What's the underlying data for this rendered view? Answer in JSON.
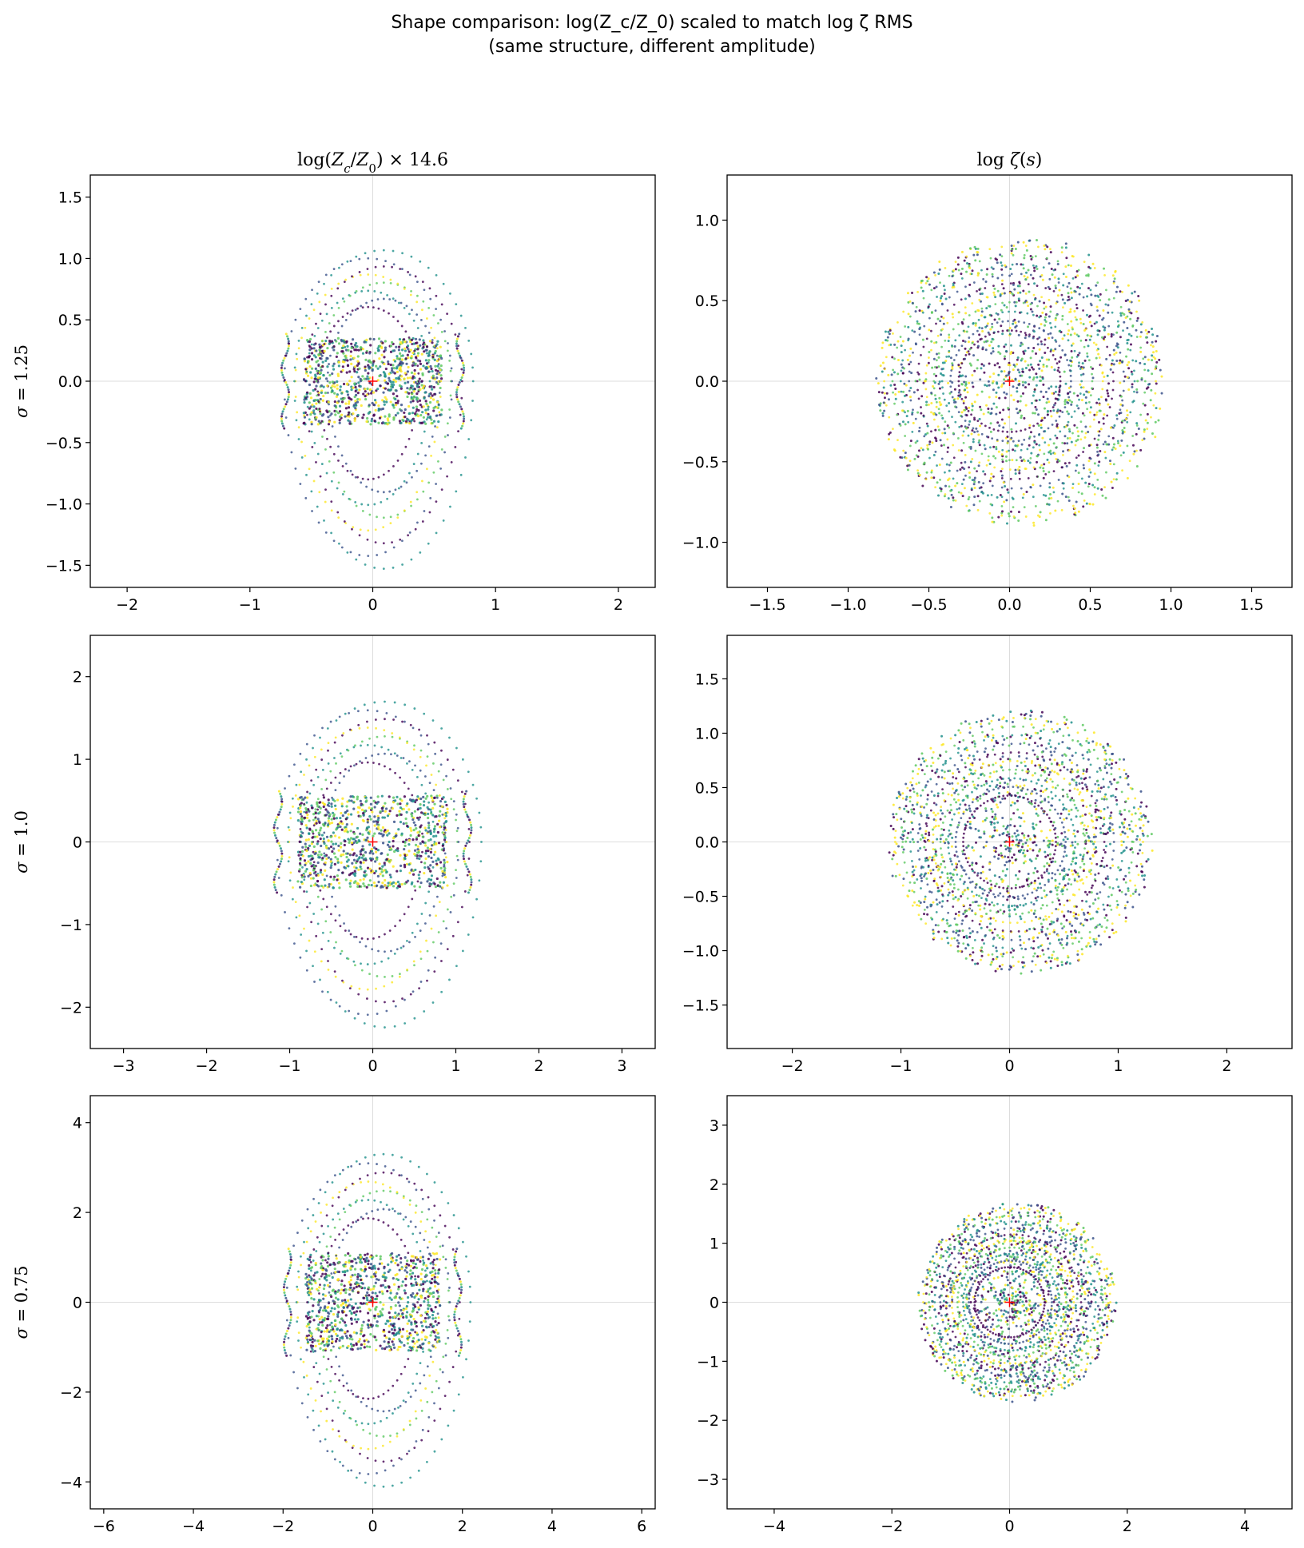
{
  "suptitle": {
    "line1": "Shape comparison: log(Z_c/Z_0) scaled to match log ζ RMS",
    "line2": "(same structure, different amplitude)"
  },
  "colors": {
    "viridis": [
      "#440154",
      "#3b528b",
      "#21918c",
      "#5ec962",
      "#fde725"
    ],
    "center_marker": "#ff0000",
    "crosshair": "#dddddd"
  },
  "chart_data": [
    {
      "type": "scatter",
      "id": "zc_s125",
      "title": "log(Zc/Z0) × 14.6",
      "ylabel": "σ = 1.25",
      "xlim": [
        -2.3,
        2.3
      ],
      "ylim": [
        -1.68,
        1.68
      ],
      "xticks": [
        -2,
        -1,
        0,
        1,
        2
      ],
      "xticklabels": [
        "−2",
        "−1",
        "0",
        "1",
        "2"
      ],
      "yticks": [
        -1.5,
        -1.0,
        -0.5,
        0.0,
        0.5,
        1.0,
        1.5
      ],
      "yticklabels": [
        "−1.5",
        "−1.0",
        "−0.5",
        "0.0",
        "0.5",
        "1.0",
        "1.5"
      ],
      "center": [
        0,
        0
      ],
      "shape": "zc",
      "spread_x": 0.75,
      "spread_y_top": 1.1,
      "spread_y_bottom": 1.6
    },
    {
      "type": "scatter",
      "id": "zeta_s125",
      "title": "log ζ(s)",
      "ylabel": "",
      "xlim": [
        -1.75,
        1.75
      ],
      "ylim": [
        -1.28,
        1.28
      ],
      "xticks": [
        -1.5,
        -1.0,
        -0.5,
        0.0,
        0.5,
        1.0,
        1.5
      ],
      "xticklabels": [
        "−1.5",
        "−1.0",
        "−0.5",
        "0.0",
        "0.5",
        "1.0",
        "1.5"
      ],
      "yticks": [
        -1.0,
        -0.5,
        0.0,
        0.5,
        1.0
      ],
      "yticklabels": [
        "−1.0",
        "−0.5",
        "0.0",
        "0.5",
        "1.0"
      ],
      "center": [
        0,
        0
      ],
      "shape": "zeta",
      "radius": 0.9
    },
    {
      "type": "scatter",
      "id": "zc_s10",
      "title": "",
      "ylabel": "σ = 1.0",
      "xlim": [
        -3.4,
        3.4
      ],
      "ylim": [
        -2.5,
        2.5
      ],
      "xticks": [
        -3,
        -2,
        -1,
        0,
        1,
        2,
        3
      ],
      "xticklabels": [
        "−3",
        "−2",
        "−1",
        "0",
        "1",
        "2",
        "3"
      ],
      "yticks": [
        -2,
        -1,
        0,
        1,
        2
      ],
      "yticklabels": [
        "−2",
        "−1",
        "0",
        "1",
        "2"
      ],
      "center": [
        0,
        0
      ],
      "shape": "zc",
      "spread_x": 1.2,
      "spread_y_top": 1.75,
      "spread_y_bottom": 2.35
    },
    {
      "type": "scatter",
      "id": "zeta_s10",
      "title": "",
      "ylabel": "",
      "xlim": [
        -2.6,
        2.6
      ],
      "ylim": [
        -1.9,
        1.9
      ],
      "xticks": [
        -2,
        -1,
        0,
        1,
        2
      ],
      "xticklabels": [
        "−2",
        "−1",
        "0",
        "1",
        "2"
      ],
      "yticks": [
        -1.5,
        -1.0,
        -0.5,
        0.0,
        0.5,
        1.0,
        1.5
      ],
      "yticklabels": [
        "−1.5",
        "−1.0",
        "−0.5",
        "0.0",
        "0.5",
        "1.0",
        "1.5"
      ],
      "center": [
        0,
        0
      ],
      "shape": "zeta",
      "radius": 1.22
    },
    {
      "type": "scatter",
      "id": "zc_s075",
      "title": "",
      "ylabel": "σ = 0.75",
      "xlim": [
        -6.3,
        6.3
      ],
      "ylim": [
        -4.6,
        4.6
      ],
      "xticks": [
        -6,
        -4,
        -2,
        0,
        2,
        4,
        6
      ],
      "xticklabels": [
        "−6",
        "−4",
        "−2",
        "0",
        "2",
        "4",
        "6"
      ],
      "yticks": [
        -4,
        -2,
        0,
        2,
        4
      ],
      "yticklabels": [
        "−4",
        "−2",
        "0",
        "2",
        "4"
      ],
      "center": [
        0,
        0
      ],
      "shape": "zc",
      "spread_x": 2.0,
      "spread_y_top": 3.4,
      "spread_y_bottom": 4.3
    },
    {
      "type": "scatter",
      "id": "zeta_s075",
      "title": "",
      "ylabel": "",
      "xlim": [
        -4.8,
        4.8
      ],
      "ylim": [
        -3.5,
        3.5
      ],
      "xticks": [
        -4,
        -2,
        0,
        2,
        4
      ],
      "xticklabels": [
        "−4",
        "−2",
        "0",
        "2",
        "4"
      ],
      "yticks": [
        -3,
        -2,
        -1,
        0,
        1,
        2,
        3
      ],
      "yticklabels": [
        "−3",
        "−2",
        "−1",
        "0",
        "1",
        "2",
        "3"
      ],
      "center": [
        0,
        0
      ],
      "shape": "zeta",
      "radius": 1.7
    }
  ]
}
